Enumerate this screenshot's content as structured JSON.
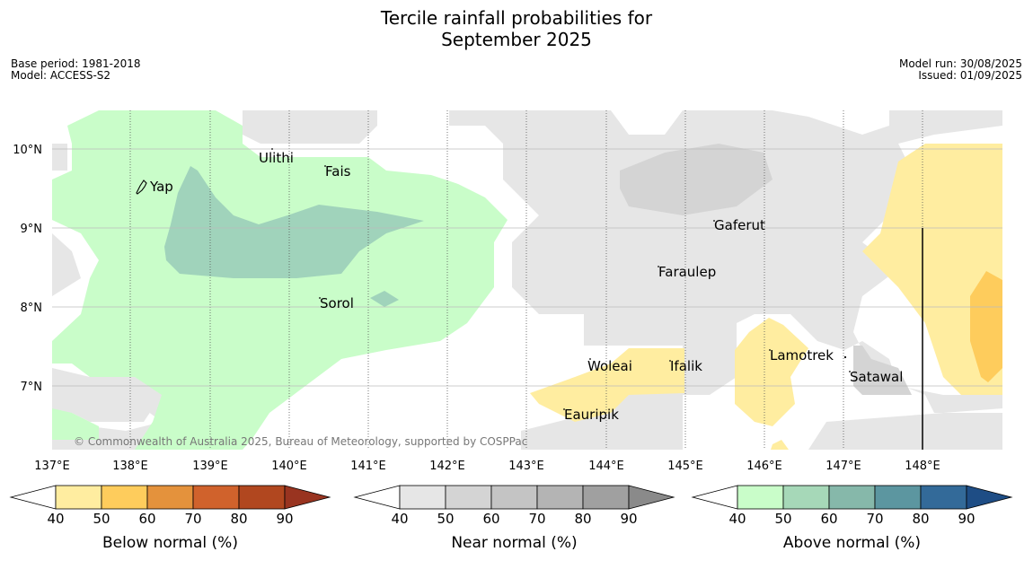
{
  "title_line1": "Tercile rainfall probabilities for",
  "title_line2": "September 2025",
  "base_period": "Base period: 1981-2018",
  "model": "Model: ACCESS-S2",
  "model_run": "Model run: 30/08/2025",
  "issued": "Issued: 01/09/2025",
  "copyright": "© Commonwealth of Australia 2025, Bureau of Meteorology, supported by COSPPac",
  "longitude_labels": [
    "137°E",
    "138°E",
    "139°E",
    "140°E",
    "141°E",
    "142°E",
    "143°E",
    "144°E",
    "145°E",
    "146°E",
    "147°E",
    "148°E"
  ],
  "latitude_labels": [
    "10°N",
    "9°N",
    "8°N",
    "7°N"
  ],
  "places": [
    "Ulithi",
    "Fais",
    "Yap",
    "Gaferut",
    "Faraulep",
    "Sorol",
    "Woleai",
    "Ifalik",
    "Lamotrek",
    "Satawal",
    "Eauripik"
  ],
  "legends": [
    {
      "name": "Below normal (%)",
      "ticks": [
        "40",
        "50",
        "60",
        "70",
        "80",
        "90"
      ],
      "colors": [
        "#ffffff",
        "#ffeda0",
        "#fecc5c",
        "#e4923c",
        "#d0622c",
        "#b1471f",
        "#993420"
      ]
    },
    {
      "name": "Near normal (%)",
      "ticks": [
        "40",
        "50",
        "60",
        "70",
        "80",
        "90"
      ],
      "colors": [
        "#ffffff",
        "#e6e6e6",
        "#d4d4d4",
        "#c4c4c4",
        "#b4b4b4",
        "#a0a0a0",
        "#8a8a8a"
      ]
    },
    {
      "name": "Above normal (%)",
      "ticks": [
        "40",
        "50",
        "60",
        "70",
        "80",
        "90"
      ],
      "colors": [
        "#ffffff",
        "#c9fdc9",
        "#a6d8b8",
        "#86b8aa",
        "#5c96a0",
        "#336a99",
        "#1e4d85"
      ]
    }
  ]
}
